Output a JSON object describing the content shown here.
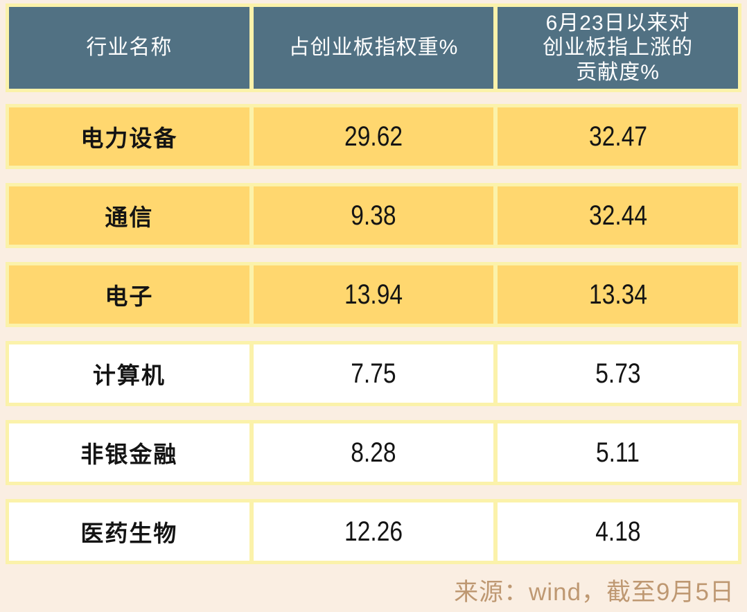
{
  "page": {
    "source_note": "来源：wind，截至9月5日"
  },
  "colors": {
    "page_background": "#FAEEE2",
    "frame_pale_yellow": "#FBF2AA",
    "header_slate_blue": "#517183",
    "header_text": "#FFFFFF",
    "highlight_gold": "#FFD76F",
    "cell_white": "#FFFFFF",
    "cell_text": "#141414",
    "source_text_tan": "#BE9872"
  },
  "table": {
    "header": {
      "industry": "行业名称",
      "weight": "占创业板指权重%",
      "contribution": "6月23日以来对\n创业板指上涨的\n贡献度%"
    },
    "rows": [
      {
        "industry": "电力设备",
        "weight": "29.62",
        "contribution": "32.47"
      },
      {
        "industry": "通信",
        "weight": "9.38",
        "contribution": "32.44"
      },
      {
        "industry": "电子",
        "weight": "13.94",
        "contribution": "13.34"
      },
      {
        "industry": "计算机",
        "weight": "7.75",
        "contribution": "5.73"
      },
      {
        "industry": "非银金融",
        "weight": "8.28",
        "contribution": "5.11"
      },
      {
        "industry": "医药生物",
        "weight": "12.26",
        "contribution": "4.18"
      }
    ]
  },
  "chart_data": {
    "type": "table",
    "title": "",
    "columns": [
      "行业名称",
      "占创业板指权重%",
      "6月23日以来对创业板指上涨的贡献度%"
    ],
    "rows": [
      [
        "电力设备",
        29.62,
        32.47
      ],
      [
        "通信",
        9.38,
        32.44
      ],
      [
        "电子",
        13.94,
        13.34
      ],
      [
        "计算机",
        7.75,
        5.73
      ],
      [
        "非银金融",
        8.28,
        5.11
      ],
      [
        "医药生物",
        12.26,
        4.18
      ]
    ],
    "highlighted_rows": [
      "电力设备",
      "通信",
      "电子"
    ],
    "source": "来源：wind，截至9月5日"
  }
}
